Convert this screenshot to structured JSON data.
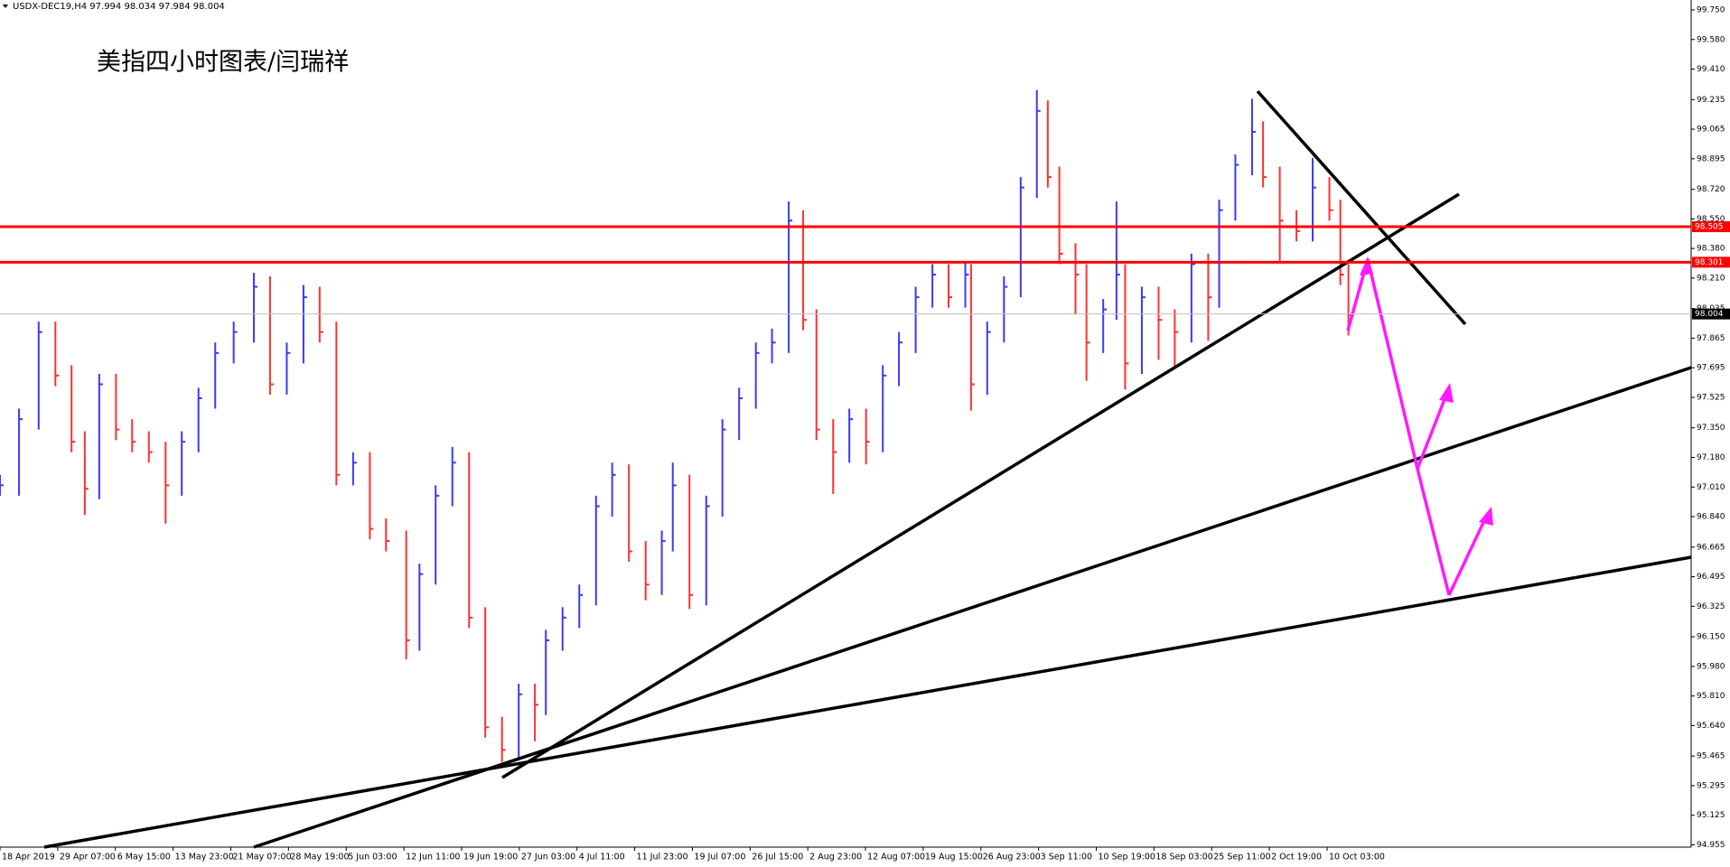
{
  "chart_data": {
    "type": "hlc",
    "symbol_info": "USDX-DEC19,H4  97.994 98.034 97.984 98.004",
    "title": "美指四小时图表/闫瑞祥",
    "up_color": "#3a3aff",
    "down_color": "#ff3030",
    "level_color": "#ff0000",
    "price_color": "#c0c0c0",
    "xlim": [
      0,
      29.31
    ],
    "xticks": [
      {
        "value": 0,
        "label": "18 Apr 2019"
      },
      {
        "value": 1,
        "label": "29 Apr 07:00"
      },
      {
        "value": 2,
        "label": "6 May 15:00"
      },
      {
        "value": 3,
        "label": "13 May 23:00"
      },
      {
        "value": 4,
        "label": "21 May 07:00"
      },
      {
        "value": 5,
        "label": "28 May 19:00"
      },
      {
        "value": 6,
        "label": "5 Jun 03:00"
      },
      {
        "value": 7,
        "label": "12 Jun 11:00"
      },
      {
        "value": 8,
        "label": "19 Jun 19:00"
      },
      {
        "value": 9,
        "label": "27 Jun 03:00"
      },
      {
        "value": 10,
        "label": "4 Jul 11:00"
      },
      {
        "value": 11,
        "label": "11 Jul 23:00"
      },
      {
        "value": 12,
        "label": "19 Jul 07:00"
      },
      {
        "value": 13,
        "label": "26 Jul 15:00"
      },
      {
        "value": 14,
        "label": "2 Aug 23:00"
      },
      {
        "value": 15,
        "label": "12 Aug 07:00"
      },
      {
        "value": 16,
        "label": "19 Aug 15:00"
      },
      {
        "value": 17,
        "label": "26 Aug 23:00"
      },
      {
        "value": 18,
        "label": "3 Sep 11:00"
      },
      {
        "value": 19,
        "label": "10 Sep 19:00"
      },
      {
        "value": 20,
        "label": "18 Sep 03:00"
      },
      {
        "value": 21,
        "label": "25 Sep 11:00"
      },
      {
        "value": 22,
        "label": "2 Oct 19:00"
      },
      {
        "value": 23,
        "label": "10 Oct 03:00"
      }
    ],
    "ylim": [
      94.942,
      99.807
    ],
    "yticks": [
      {
        "value": 99.75,
        "label": "99.750"
      },
      {
        "value": 99.58,
        "label": "99.580"
      },
      {
        "value": 99.41,
        "label": "99.410"
      },
      99.235,
      99.065,
      98.895,
      {
        "value": 98.72,
        "label": "98.720"
      },
      {
        "value": 98.55,
        "label": "98.550"
      },
      {
        "value": 98.38,
        "label": "98.380"
      },
      {
        "value": 98.21,
        "label": "98.210"
      },
      98.035,
      97.865,
      97.695,
      97.525,
      {
        "value": 97.35,
        "label": "97.350"
      },
      {
        "value": 97.18,
        "label": "97.180"
      },
      {
        "value": 97.01,
        "label": "97.010"
      },
      {
        "value": 96.84,
        "label": "96.840"
      },
      96.665,
      96.495,
      96.325,
      {
        "value": 96.15,
        "label": "96.150"
      },
      {
        "value": 95.98,
        "label": "95.980"
      },
      {
        "value": 95.81,
        "label": "95.810"
      },
      {
        "value": 95.64,
        "label": "95.640"
      },
      95.465,
      95.295,
      95.125,
      94.955
    ],
    "levels": [
      98.505,
      98.301
    ],
    "current_price": 98.004,
    "x": [
      0,
      0.33,
      0.67,
      0.96,
      1.24,
      1.47,
      1.72,
      2.01,
      2.29,
      2.58,
      2.87,
      3.15,
      3.44,
      3.73,
      4.05,
      4.4,
      4.68,
      4.97,
      5.26,
      5.54,
      5.83,
      6.12,
      6.41,
      6.69,
      7.04,
      7.27,
      7.55,
      7.84,
      8.13,
      8.41,
      8.7,
      8.99,
      9.27,
      9.46,
      9.75,
      10.04,
      10.33,
      10.61,
      10.9,
      11.19,
      11.47,
      11.66,
      11.95,
      12.24,
      12.52,
      12.81,
      13.1,
      13.38,
      13.67,
      13.92,
      14.15,
      14.44,
      14.72,
      15.01,
      15.3,
      15.58,
      15.87,
      16.16,
      16.44,
      16.73,
      16.83,
      17.11,
      17.4,
      17.69,
      17.97,
      18.16,
      18.36,
      18.64,
      18.83,
      19.12,
      19.35,
      19.5,
      19.79,
      20.08,
      20.36,
      20.65,
      20.94,
      21.13,
      21.41,
      21.7,
      21.89,
      22.18,
      22.47,
      22.75,
      23.04,
      23.23,
      23.37
    ],
    "high": [
      97.08,
      97.46,
      97.96,
      97.96,
      97.71,
      97.33,
      97.66,
      97.66,
      97.4,
      97.33,
      97.27,
      97.33,
      97.58,
      97.84,
      97.96,
      98.24,
      98.22,
      97.84,
      98.17,
      98.16,
      97.96,
      97.21,
      97.21,
      96.83,
      96.76,
      96.57,
      97.02,
      97.24,
      97.21,
      96.32,
      95.69,
      95.88,
      95.88,
      96.19,
      96.32,
      96.45,
      96.96,
      97.15,
      97.14,
      96.7,
      96.76,
      97.15,
      97.08,
      96.96,
      97.4,
      97.58,
      97.84,
      97.92,
      98.65,
      98.6,
      98.03,
      97.4,
      97.46,
      97.46,
      97.71,
      97.9,
      98.16,
      98.29,
      98.29,
      98.3,
      98.29,
      97.96,
      98.22,
      98.79,
      99.29,
      99.23,
      98.85,
      98.41,
      98.29,
      98.09,
      98.65,
      98.29,
      98.16,
      98.16,
      98.03,
      98.35,
      98.35,
      98.66,
      98.92,
      99.24,
      99.11,
      98.85,
      98.6,
      98.9,
      98.79,
      98.66,
      98.29
    ],
    "low": [
      96.96,
      96.96,
      97.34,
      97.59,
      97.21,
      96.85,
      96.94,
      97.28,
      97.21,
      97.15,
      96.8,
      96.96,
      97.21,
      97.46,
      97.72,
      97.84,
      97.54,
      97.54,
      97.72,
      97.84,
      97.02,
      97.02,
      96.71,
      96.64,
      96.02,
      96.07,
      96.45,
      96.9,
      96.2,
      95.57,
      95.43,
      95.44,
      95.55,
      95.7,
      96.07,
      96.2,
      96.33,
      96.84,
      96.58,
      96.36,
      96.39,
      96.64,
      96.31,
      96.33,
      96.84,
      97.28,
      97.46,
      97.72,
      97.78,
      97.91,
      97.28,
      96.97,
      97.15,
      97.14,
      97.21,
      97.59,
      97.78,
      98.04,
      98.04,
      98.04,
      97.45,
      97.54,
      97.84,
      98.1,
      98.67,
      98.73,
      98.29,
      98,
      97.62,
      97.78,
      97.97,
      97.57,
      97.66,
      97.74,
      97.7,
      97.84,
      97.85,
      98.04,
      98.54,
      98.8,
      98.73,
      98.3,
      98.42,
      98.42,
      98.54,
      98.17,
      97.88
    ],
    "close": [
      97.02,
      97.4,
      97.9,
      97.65,
      97.27,
      97,
      97.6,
      97.34,
      97.27,
      97.21,
      97.02,
      97.27,
      97.52,
      97.78,
      97.9,
      98.16,
      97.6,
      97.78,
      98.1,
      97.9,
      97.08,
      97.15,
      96.77,
      96.7,
      96.13,
      96.51,
      96.96,
      97.15,
      96.26,
      95.63,
      95.5,
      95.82,
      95.76,
      96.13,
      96.26,
      96.39,
      96.9,
      97.08,
      96.64,
      96.45,
      96.7,
      97.02,
      96.39,
      96.9,
      97.34,
      97.52,
      97.78,
      97.84,
      98.54,
      97.97,
      97.34,
      97.21,
      97.4,
      97.27,
      97.65,
      97.84,
      98.1,
      98.23,
      98.1,
      98.23,
      97.6,
      97.9,
      98.16,
      98.73,
      99.17,
      98.79,
      98.35,
      98.23,
      97.84,
      98.03,
      98.23,
      97.72,
      98.1,
      97.97,
      97.9,
      98.29,
      98.1,
      98.6,
      98.86,
      99.05,
      98.79,
      98.54,
      98.48,
      98.73,
      98.6,
      98.23,
      98
    ]
  }
}
